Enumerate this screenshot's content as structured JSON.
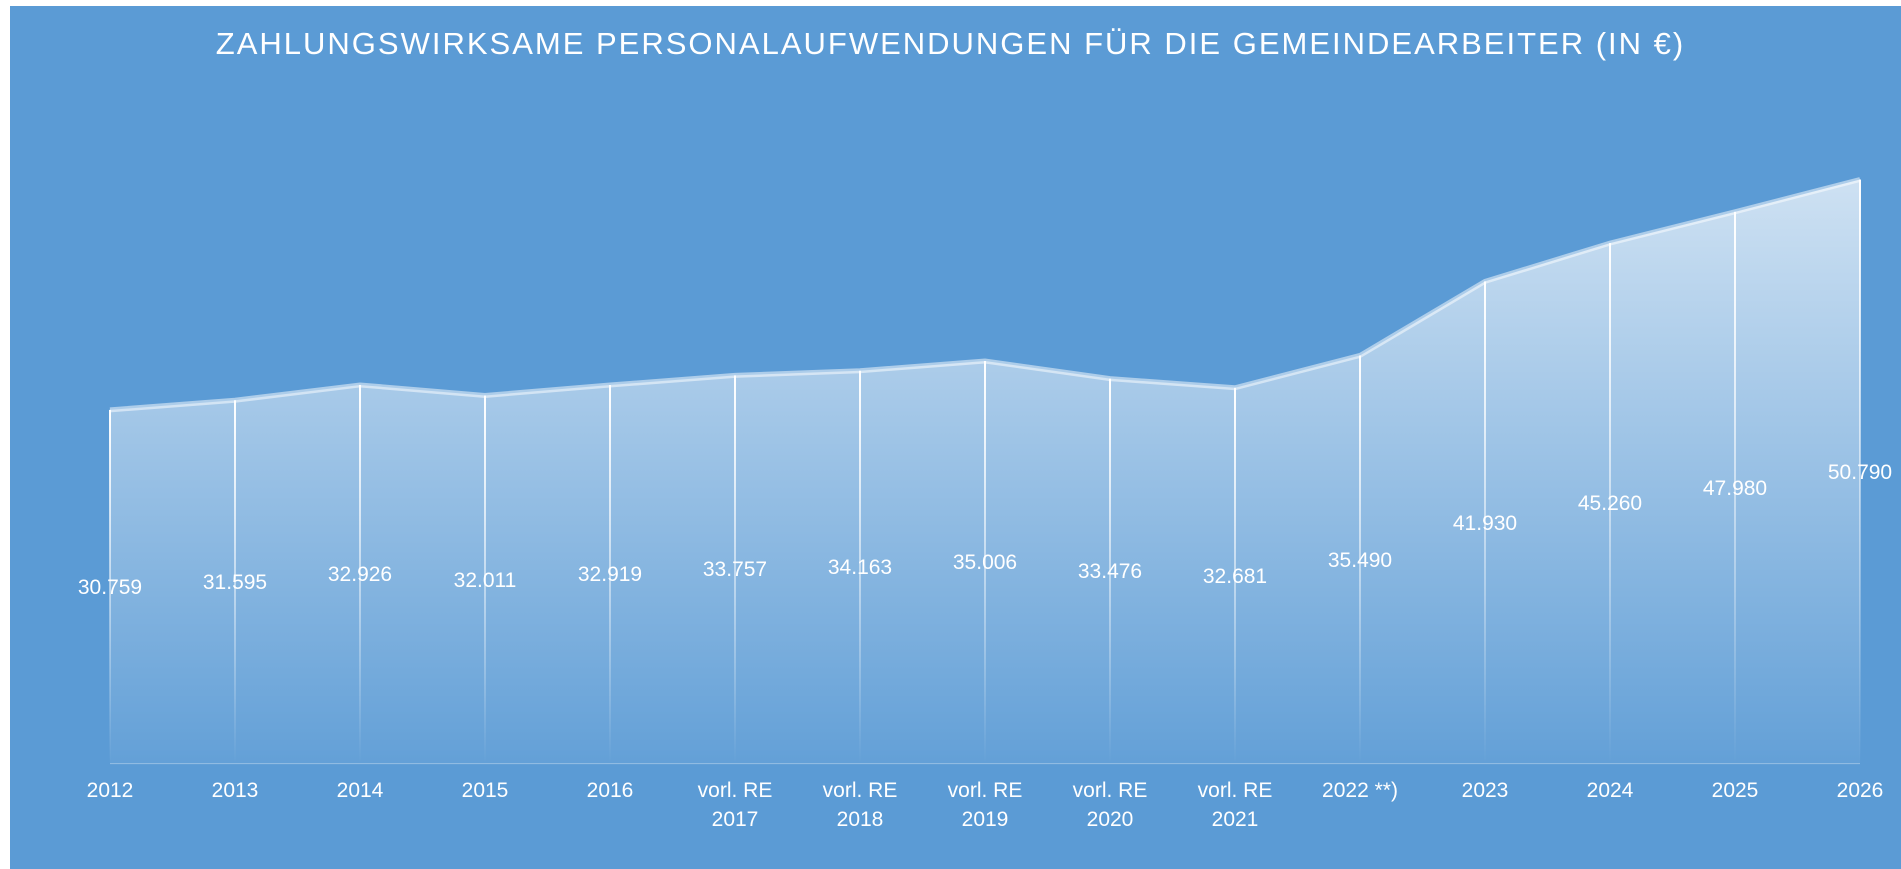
{
  "chart_data": {
    "type": "area",
    "title": "ZAHLUNGSWIRKSAME PERSONALAUFWENDUNGEN FÜR DIE GEMEINDEARBEITER (IN €)",
    "categories": [
      "2012",
      "2013",
      "2014",
      "2015",
      "2016",
      "vorl. RE 2017",
      "vorl. RE 2018",
      "vorl. RE 2019",
      "vorl. RE 2020",
      "vorl. RE 2021",
      "2022 **)",
      "2023",
      "2024",
      "2025",
      "2026"
    ],
    "values": [
      30759,
      31595,
      32926,
      32011,
      32919,
      33757,
      34163,
      35006,
      33476,
      32681,
      35490,
      41930,
      45260,
      47980,
      50790
    ],
    "value_labels": [
      "30.759",
      "31.595",
      "32.926",
      "32.011",
      "32.919",
      "33.757",
      "34.163",
      "35.006",
      "33.476",
      "32.681",
      "35.490",
      "41.930",
      "45.260",
      "47.980",
      "50.790"
    ],
    "color": "#ffffff",
    "ylim": [
      0,
      60000
    ]
  }
}
